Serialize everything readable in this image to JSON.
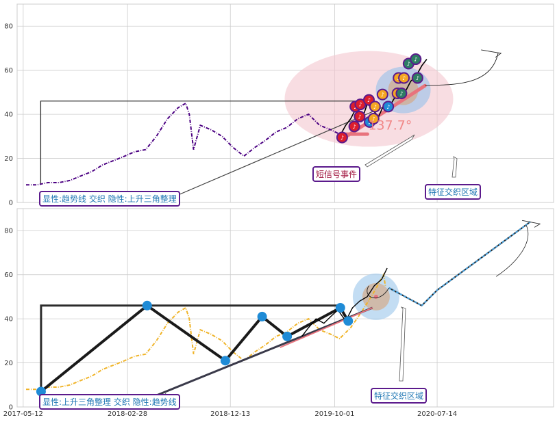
{
  "chart_data": [
    {
      "type": "line",
      "panel": "top",
      "ylim": [
        0,
        90
      ],
      "yticks": [
        0,
        20,
        40,
        60,
        80
      ],
      "grid": true,
      "series": [
        {
          "color": "#4b0082",
          "style": "dash-dot",
          "x": [
            "2017-05-20",
            "2017-06-20",
            "2017-07-20",
            "2017-08-20",
            "2017-09-20",
            "2017-10-20",
            "2017-11-20",
            "2017-12-20",
            "2018-01-20",
            "2018-02-20",
            "2018-03-20",
            "2018-04-20",
            "2018-05-20",
            "2018-06-20",
            "2018-07-20",
            "2018-08-10",
            "2018-08-20",
            "2018-09-01",
            "2018-09-20",
            "2018-10-20",
            "2018-11-20",
            "2018-12-20",
            "2019-01-20",
            "2019-02-20",
            "2019-03-20",
            "2019-04-20",
            "2019-05-20",
            "2019-06-20",
            "2019-07-20",
            "2019-08-20",
            "2019-09-20",
            "2019-10-15"
          ],
          "y": [
            8,
            8,
            9,
            9,
            10,
            12,
            14,
            17,
            19,
            21,
            23,
            24,
            30,
            38,
            43,
            45,
            40,
            24,
            35,
            33,
            30,
            25,
            21,
            25,
            28,
            32,
            34,
            38,
            40,
            35,
            33,
            31
          ]
        },
        {
          "color": "#000000",
          "style": "solid",
          "x": [
            "2019-10-15",
            "2019-11-01",
            "2019-11-15",
            "2019-12-01",
            "2019-12-15",
            "2020-01-01",
            "2020-01-15",
            "2020-02-01",
            "2020-02-15",
            "2020-03-01",
            "2020-03-15",
            "2020-04-01",
            "2020-04-15",
            "2020-05-01",
            "2020-05-15",
            "2020-06-01",
            "2020-06-15"
          ],
          "y": [
            30,
            35,
            38,
            43,
            37,
            45,
            42,
            39,
            44,
            43,
            47,
            49,
            50,
            55,
            57,
            62,
            65
          ]
        }
      ],
      "markers": {
        "colors": [
          "#dc1e2d",
          "#f5a623",
          "#1f8bd6",
          "#2e7d64"
        ],
        "ring_color": "#5b1a8c",
        "points": [
          {
            "x": "2019-10-22",
            "y": 29.5,
            "color": "#dc1e2d"
          },
          {
            "x": "2019-11-25",
            "y": 34.5,
            "color": "#dc1e2d"
          },
          {
            "x": "2019-11-28",
            "y": 43.5,
            "color": "#dc1e2d"
          },
          {
            "x": "2019-12-10",
            "y": 39,
            "color": "#dc1e2d"
          },
          {
            "x": "2019-12-12",
            "y": 44.5,
            "color": "#dc1e2d"
          },
          {
            "x": "2020-01-05",
            "y": 46.5,
            "color": "#dc1e2d"
          },
          {
            "x": "2020-01-07",
            "y": 36.5,
            "color": "#1f8bd6"
          },
          {
            "x": "2020-01-18",
            "y": 38,
            "color": "#f5a623"
          },
          {
            "x": "2020-01-22",
            "y": 43.5,
            "color": "#f5a623"
          },
          {
            "x": "2020-02-12",
            "y": 49,
            "color": "#f5a623"
          },
          {
            "x": "2020-02-28",
            "y": 43.5,
            "color": "#1f8bd6"
          },
          {
            "x": "2020-03-25",
            "y": 49.5,
            "color": "#f5a623"
          },
          {
            "x": "2020-03-28",
            "y": 56.5,
            "color": "#f5a623"
          },
          {
            "x": "2020-04-05",
            "y": 49.5,
            "color": "#2e7d64"
          },
          {
            "x": "2020-04-12",
            "y": 56.5,
            "color": "#f5a623"
          },
          {
            "x": "2020-04-25",
            "y": 63,
            "color": "#2e7d64"
          },
          {
            "x": "2020-05-15",
            "y": 65,
            "color": "#2e7d64"
          },
          {
            "x": "2020-05-20",
            "y": 56.5,
            "color": "#2e7d64"
          }
        ]
      },
      "pattern_box": {
        "x0": "2017-06-30",
        "x1": "2020-01-01",
        "y0": 8,
        "y1": 46
      },
      "trend_line": {
        "x0": "2018-06-01",
        "y0": 0,
        "x1": "2020-03-10",
        "y1": 45
      },
      "support_line": {
        "x0": "2019-10-15",
        "y0": 28,
        "x1": "2020-06-10",
        "y1": 53
      },
      "forecast": {
        "x0": "2020-06-10",
        "y0": 53,
        "x1": "2021-01-01",
        "y1": 68
      },
      "angle_label": "137.7°",
      "annotations": [
        {
          "text": "显性:趋势线 交织 隐性:上升三角整理",
          "text_color": "#1f77b4"
        },
        {
          "text": "短信号事件",
          "text_color": "#a0153e"
        },
        {
          "text": "特征交织区域",
          "text_color": "#1f77b4"
        }
      ]
    },
    {
      "type": "line",
      "panel": "bottom",
      "ylim": [
        0,
        90
      ],
      "yticks": [
        0,
        20,
        40,
        60,
        80
      ],
      "xticks": [
        "2017-05-12",
        "2018-02-28",
        "2018-12-13",
        "2019-10-01",
        "2020-07-14"
      ],
      "grid": true,
      "series": [
        {
          "color": "#f0b429",
          "style": "dash-dot",
          "x": [
            "2017-05-20",
            "2017-06-20",
            "2017-07-20",
            "2017-08-20",
            "2017-09-20",
            "2017-10-20",
            "2017-11-20",
            "2017-12-20",
            "2018-01-20",
            "2018-02-20",
            "2018-03-20",
            "2018-04-20",
            "2018-05-20",
            "2018-06-20",
            "2018-07-20",
            "2018-08-10",
            "2018-08-20",
            "2018-09-01",
            "2018-09-20",
            "2018-10-20",
            "2018-11-20",
            "2018-12-20",
            "2019-01-20",
            "2019-02-20",
            "2019-03-20",
            "2019-04-20",
            "2019-05-20",
            "2019-06-20",
            "2019-07-20",
            "2019-08-20",
            "2019-09-20",
            "2019-10-15",
            "2019-11-15",
            "2019-12-15",
            "2020-01-15",
            "2020-02-15",
            "2020-02-20"
          ],
          "y": [
            8,
            8,
            9,
            9,
            10,
            12,
            14,
            17,
            19,
            21,
            23,
            24,
            30,
            38,
            43,
            45,
            40,
            24,
            35,
            33,
            30,
            25,
            21,
            25,
            28,
            32,
            34,
            38,
            40,
            35,
            33,
            31,
            36,
            43,
            51,
            60,
            55
          ]
        },
        {
          "color": "#000000",
          "style": "solid",
          "x": [
            "2019-07-01",
            "2019-07-20",
            "2019-08-10",
            "2019-09-01",
            "2019-09-20",
            "2019-10-10",
            "2019-11-01",
            "2019-11-20",
            "2019-12-10",
            "2019-12-31",
            "2020-01-20",
            "2020-02-10",
            "2020-02-25"
          ],
          "y": [
            32,
            36,
            40,
            38,
            41,
            44,
            39,
            45,
            48,
            50,
            55,
            58,
            63
          ]
        }
      ],
      "zigzag": {
        "x": [
          "2017-07-01",
          "2018-04-24",
          "2018-11-29",
          "2019-03-12",
          "2019-05-21",
          "2019-10-17",
          "2019-11-08"
        ],
        "y": [
          7,
          46,
          21,
          41,
          32,
          45,
          39
        ]
      },
      "pattern_box": {
        "x0": "2017-07-01",
        "x1": "2019-10-17",
        "y0": 7,
        "y1": 46
      },
      "trend_line": {
        "x0": "2018-03-01",
        "y0": 0,
        "x1": "2020-01-15",
        "y1": 45
      },
      "red_line": {
        "x0": "2019-05-01",
        "y0": 27,
        "x1": "2020-01-15",
        "y1": 45
      },
      "forecast_zigzag": {
        "x": [
          "2020-03-01",
          "2020-06-01",
          "2020-07-14",
          "2021-04-01"
        ],
        "y": [
          54,
          46,
          53,
          84
        ]
      },
      "annotations": [
        {
          "text": "显性:上升三角整理 交织 隐性:趋势线",
          "text_color": "#1f77b4"
        },
        {
          "text": "特征交织区域",
          "text_color": "#1f77b4"
        }
      ]
    }
  ]
}
